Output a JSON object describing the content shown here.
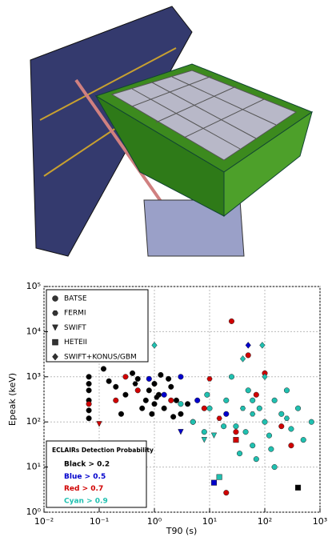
{
  "chart_data": {
    "type": "scatter",
    "x_label": "T90 (s)",
    "y_label": "Epeak (keV)",
    "log_x": true,
    "log_y": true,
    "grid": true,
    "xlim": [
      0.01,
      1000
    ],
    "ylim": [
      1,
      100000
    ],
    "xticks": [
      {
        "value": 0.01,
        "label": "10⁻²"
      },
      {
        "value": 0.1,
        "label": "10⁻¹"
      },
      {
        "value": 1,
        "label": "10⁰"
      },
      {
        "value": 10,
        "label": "10¹"
      },
      {
        "value": 100,
        "label": "10²"
      },
      {
        "value": 1000,
        "label": "10³"
      }
    ],
    "yticks": [
      {
        "value": 1,
        "label": "10⁰"
      },
      {
        "value": 10,
        "label": "10¹"
      },
      {
        "value": 100,
        "label": "10²"
      },
      {
        "value": 1000,
        "label": "10³"
      },
      {
        "value": 10000,
        "label": "10⁴"
      },
      {
        "value": 100000,
        "label": "10⁵"
      }
    ],
    "legend_position": "upper left",
    "series": [
      {
        "name": "BATSE",
        "marker": "circle",
        "x": [
          0.065,
          0.065,
          0.065,
          0.065,
          0.065,
          0.065,
          0.12,
          0.15,
          0.2,
          0.3,
          0.5,
          0.7,
          0.8,
          1,
          1,
          1.2,
          1.5,
          2,
          2.5,
          3,
          0.4,
          0.9,
          1.8,
          4,
          0.6,
          1.3,
          0.25,
          5,
          2.2,
          0.065,
          0.2,
          0.3,
          0.5,
          2,
          8,
          25,
          50,
          100,
          30,
          200,
          20,
          300,
          70,
          0.8,
          1.5,
          3,
          6,
          20,
          3,
          5,
          8,
          10,
          20,
          30,
          50,
          60,
          80,
          100,
          120,
          150,
          200,
          300,
          400,
          700,
          25,
          35,
          70,
          130,
          250,
          18,
          45,
          60,
          500,
          9,
          150
        ],
        "values": [
          1000,
          700,
          500,
          300,
          180,
          120,
          1500,
          800,
          600,
          400,
          900,
          300,
          500,
          700,
          250,
          400,
          200,
          600,
          300,
          150,
          1200,
          150,
          900,
          250,
          200,
          1100,
          150,
          100,
          130,
          250,
          300,
          1000,
          500,
          300,
          200,
          17000,
          3000,
          1200,
          60,
          80,
          2.7,
          30,
          400,
          900,
          400,
          1000,
          300,
          150,
          250,
          100,
          60,
          200,
          300,
          80,
          500,
          30,
          200,
          100,
          50,
          300,
          150,
          70,
          200,
          100,
          1000,
          20,
          15,
          25,
          500,
          80,
          60,
          300,
          40,
          400,
          10
        ],
        "colors": [
          "#000000",
          "#000000",
          "#000000",
          "#000000",
          "#000000",
          "#000000",
          "#000000",
          "#000000",
          "#000000",
          "#000000",
          "#000000",
          "#000000",
          "#000000",
          "#000000",
          "#000000",
          "#000000",
          "#000000",
          "#000000",
          "#000000",
          "#000000",
          "#000000",
          "#000000",
          "#000000",
          "#000000",
          "#000000",
          "#000000",
          "#000000",
          "#000000",
          "#000000",
          "#d00000",
          "#d00000",
          "#d00000",
          "#d00000",
          "#d00000",
          "#d00000",
          "#d00000",
          "#d00000",
          "#d00000",
          "#d00000",
          "#d00000",
          "#d00000",
          "#d00000",
          "#d00000",
          "#0000cc",
          "#0000cc",
          "#0000cc",
          "#0000cc",
          "#0000cc",
          "#20c0b0",
          "#20c0b0",
          "#20c0b0",
          "#20c0b0",
          "#20c0b0",
          "#20c0b0",
          "#20c0b0",
          "#20c0b0",
          "#20c0b0",
          "#20c0b0",
          "#20c0b0",
          "#20c0b0",
          "#20c0b0",
          "#20c0b0",
          "#20c0b0",
          "#20c0b0",
          "#20c0b0",
          "#20c0b0",
          "#20c0b0",
          "#20c0b0",
          "#20c0b0",
          "#20c0b0",
          "#20c0b0",
          "#20c0b0",
          "#20c0b0",
          "#20c0b0",
          "#20c0b0"
        ]
      },
      {
        "name": "FERMI",
        "marker": "hexagon",
        "x": [
          1.1,
          0.45,
          15,
          40,
          10,
          60,
          250
        ],
        "values": [
          350,
          700,
          120,
          200,
          900,
          150,
          120
        ],
        "colors": [
          "#000000",
          "#000000",
          "#d00000",
          "#20c0b0",
          "#d00000",
          "#20c0b0",
          "#20c0b0"
        ]
      },
      {
        "name": "SWIFT",
        "marker": "triangle",
        "x": [
          0.1,
          12,
          3,
          8
        ],
        "values": [
          90,
          50,
          60,
          40
        ],
        "colors": [
          "#d00000",
          "#20c0b0",
          "#0000cc",
          "#20c0b0"
        ]
      },
      {
        "name": "HETEII",
        "marker": "square",
        "x": [
          400,
          12,
          15,
          30
        ],
        "values": [
          3.5,
          4.5,
          6,
          40
        ],
        "colors": [
          "#000000",
          "#0000cc",
          "#20c0b0",
          "#d00000"
        ]
      },
      {
        "name": "SWIFT+KONUS/GBM",
        "marker": "diamond",
        "x": [
          1,
          50,
          90,
          40,
          100
        ],
        "values": [
          5000,
          5000,
          5000,
          2500,
          1000
        ],
        "colors": [
          "#20c0b0",
          "#0000cc",
          "#20c0b0",
          "#20c0b0",
          "#20c0b0"
        ]
      }
    ],
    "color_legend": {
      "title": "ECLAIRs Detection Probability",
      "entries": [
        {
          "label": "Black > 0.2",
          "color": "#000000"
        },
        {
          "label": "Blue > 0.5",
          "color": "#0000cc"
        },
        {
          "label": "Red > 0.7",
          "color": "#d00000"
        },
        {
          "label": "Cyan > 0.9",
          "color": "#20c0b0"
        }
      ]
    }
  }
}
